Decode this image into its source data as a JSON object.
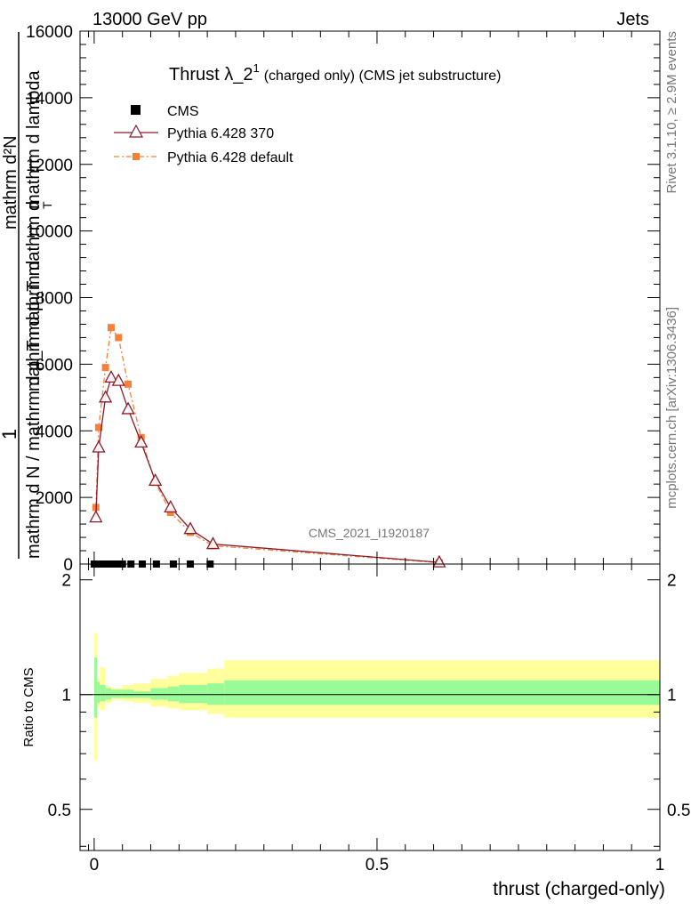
{
  "header": {
    "left": "13000 GeV pp",
    "right": "Jets"
  },
  "side": {
    "rivet": "Rivet 3.1.10, ≥ 2.9M events",
    "mcplots": "mcplots.cern.ch [arXiv:1306.3436]"
  },
  "chart_data": [
    {
      "type": "line",
      "title_main": "Thrust λ_2",
      "title_sup": "1",
      "title_rest": "(charged only) (CMS jet substructure)",
      "ylabel_parts": [
        "1",
        "mathrm d N / mathrm d p_T mathrm d",
        "mathrm d p_T mathrm d",
        "mathrm d²N",
        "mathrm d lambda"
      ],
      "ylabel_sub": "T",
      "analysis_tag": "CMS_2021_I1920187",
      "ylim": [
        0,
        16000
      ],
      "xlim": [
        -0.025,
        1.0
      ],
      "yticks": [
        0,
        2000,
        4000,
        6000,
        8000,
        10000,
        12000,
        14000,
        16000
      ],
      "ytick_labels": [
        "0",
        "2000",
        "4000",
        "6000",
        "8000",
        "10000",
        "12000",
        "14000",
        "16000"
      ],
      "legend_position": "top-left",
      "series": [
        {
          "name": "CMS",
          "color": "#000000",
          "marker": "square",
          "x": [
            0.0,
            0.01,
            0.02,
            0.03,
            0.04,
            0.05,
            0.065,
            0.085,
            0.11,
            0.14,
            0.17,
            0.205
          ],
          "y": [
            0,
            0,
            0,
            0,
            0,
            0,
            0,
            0,
            0,
            0,
            0,
            0
          ]
        },
        {
          "name": "Pythia 6.428 370",
          "color": "#8b1a2b",
          "marker": "triangle-open",
          "x": [
            0.003,
            0.008,
            0.02,
            0.03,
            0.043,
            0.06,
            0.083,
            0.108,
            0.135,
            0.17,
            0.21,
            0.61
          ],
          "y": [
            1400,
            3500,
            5000,
            5600,
            5500,
            4650,
            3650,
            2500,
            1700,
            1050,
            600,
            50
          ]
        },
        {
          "name": "Pythia 6.428 default",
          "color": "#f5813b",
          "marker": "square-small",
          "x": [
            0.003,
            0.008,
            0.02,
            0.03,
            0.043,
            0.06,
            0.083,
            0.108,
            0.135,
            0.17,
            0.21,
            0.61
          ],
          "y": [
            1700,
            4100,
            5900,
            7100,
            6800,
            5400,
            3800,
            2450,
            1550,
            950,
            550,
            40
          ]
        }
      ]
    },
    {
      "type": "area",
      "ylabel": "Ratio to CMS",
      "xlabel": "thrust (charged-only)",
      "xlim": [
        -0.025,
        1.0
      ],
      "xticks": [
        0,
        0.5,
        1
      ],
      "xtick_labels": [
        "0",
        "0.5",
        "1"
      ],
      "ylim": [
        0.39,
        2.2
      ],
      "yticks": [
        0.5,
        1,
        2
      ],
      "ytick_labels": [
        "0.5",
        "1",
        "2"
      ],
      "reference_line": 1,
      "bands": {
        "inner_color": "#98fb98",
        "outer_color": "#ffff9c",
        "x_edges": [
          0.0,
          0.005,
          0.01,
          0.02,
          0.03,
          0.05,
          0.07,
          0.1,
          0.13,
          0.15,
          0.2,
          0.23,
          1.0
        ],
        "inner": [
          [
            0.87,
            1.25
          ],
          [
            0.95,
            1.08
          ],
          [
            0.96,
            1.06
          ],
          [
            0.97,
            1.04
          ],
          [
            0.98,
            1.03
          ],
          [
            0.98,
            1.03
          ],
          [
            0.98,
            1.02
          ],
          [
            0.97,
            1.04
          ],
          [
            0.96,
            1.05
          ],
          [
            0.95,
            1.06
          ],
          [
            0.94,
            1.07
          ],
          [
            0.94,
            1.09
          ]
        ],
        "outer": [
          [
            0.67,
            1.45
          ],
          [
            0.93,
            1.1
          ],
          [
            0.91,
            1.18
          ],
          [
            0.95,
            1.05
          ],
          [
            0.97,
            1.04
          ],
          [
            0.96,
            1.06
          ],
          [
            0.95,
            1.07
          ],
          [
            0.93,
            1.1
          ],
          [
            0.92,
            1.12
          ],
          [
            0.91,
            1.14
          ],
          [
            0.89,
            1.17
          ],
          [
            0.87,
            1.23
          ]
        ]
      }
    }
  ]
}
